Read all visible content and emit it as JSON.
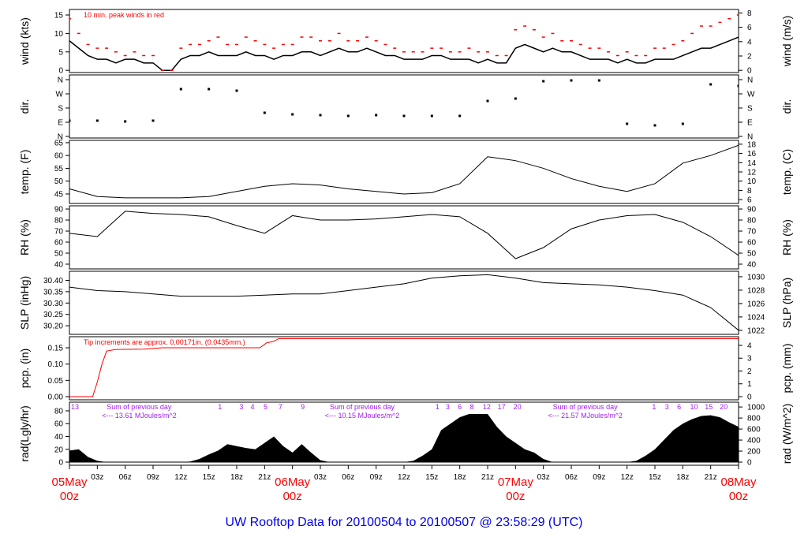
{
  "title": "UW Rooftop Data for 20100504  to  20100507 @ 23:58:29  (UTC)",
  "chart_data": {
    "type": "line",
    "x_unit": "hours since 05May 00z",
    "xlim": [
      0,
      72
    ],
    "x_ticks": [
      {
        "h": 0,
        "label": "05May",
        "sub": "00z",
        "date": true
      },
      {
        "h": 3,
        "label": "03z"
      },
      {
        "h": 6,
        "label": "06z"
      },
      {
        "h": 9,
        "label": "09z"
      },
      {
        "h": 12,
        "label": "12z"
      },
      {
        "h": 15,
        "label": "15z"
      },
      {
        "h": 18,
        "label": "18z"
      },
      {
        "h": 21,
        "label": "21z"
      },
      {
        "h": 24,
        "label": "06May",
        "sub": "00z",
        "date": true
      },
      {
        "h": 27,
        "label": "03z"
      },
      {
        "h": 30,
        "label": "06z"
      },
      {
        "h": 33,
        "label": "09z"
      },
      {
        "h": 36,
        "label": "12z"
      },
      {
        "h": 39,
        "label": "15z"
      },
      {
        "h": 42,
        "label": "18z"
      },
      {
        "h": 45,
        "label": "21z"
      },
      {
        "h": 48,
        "label": "07May",
        "sub": "00z",
        "date": true
      },
      {
        "h": 51,
        "label": "03z"
      },
      {
        "h": 54,
        "label": "06z"
      },
      {
        "h": 57,
        "label": "09z"
      },
      {
        "h": 60,
        "label": "12z"
      },
      {
        "h": 63,
        "label": "15z"
      },
      {
        "h": 66,
        "label": "18z"
      },
      {
        "h": 69,
        "label": "21z"
      },
      {
        "h": 72,
        "label": "08May",
        "sub": "00z",
        "date": true
      }
    ],
    "panels": [
      {
        "id": "wind",
        "ylabel": "wind (kts)",
        "ylabel_right": "wind (m/s)",
        "ylim": [
          -0.6,
          16.5
        ],
        "ticks": [
          0,
          5,
          10,
          15
        ],
        "tick_labels": [
          "0",
          "5",
          "10",
          "15"
        ],
        "right_ticks": [
          0,
          2,
          4,
          6,
          8
        ],
        "right_tick_labels": [
          "0",
          "2",
          "4",
          "6",
          "8"
        ],
        "note": "10 min. peak winds in red",
        "step_hours": 1,
        "values": [
          8,
          6,
          4,
          3,
          3,
          2,
          3,
          3,
          2,
          2,
          0,
          0,
          3,
          4,
          4,
          5,
          4,
          4,
          4,
          5,
          4,
          4,
          3,
          4,
          4,
          5,
          5,
          4,
          5,
          6,
          5,
          5,
          6,
          5,
          4,
          4,
          3,
          3,
          3,
          4,
          4,
          3,
          3,
          3,
          2,
          3,
          2,
          2,
          6,
          7,
          6,
          5,
          6,
          5,
          5,
          4,
          3,
          3,
          3,
          2,
          3,
          2,
          2,
          3,
          3,
          3,
          4,
          5,
          6,
          6,
          7,
          8,
          9
        ],
        "peaks": [
          14,
          10,
          7,
          6,
          6,
          5,
          4,
          5,
          4,
          4,
          0,
          0,
          6,
          7,
          7,
          8,
          9,
          7,
          7,
          9,
          8,
          7,
          6,
          7,
          7,
          9,
          9,
          8,
          8,
          10,
          8,
          8,
          9,
          8,
          7,
          6,
          5,
          5,
          5,
          6,
          6,
          5,
          5,
          6,
          5,
          5,
          4,
          4,
          11,
          12,
          11,
          9,
          10,
          8,
          8,
          7,
          6,
          6,
          5,
          4,
          5,
          4,
          4,
          6,
          6,
          7,
          8,
          10,
          12,
          12,
          13,
          14,
          15
        ]
      },
      {
        "id": "dir",
        "ylabel": "dir.",
        "ylabel_right": "dir.",
        "ylim": [
          -10,
          390
        ],
        "ticks": [
          0,
          90,
          180,
          270,
          360
        ],
        "tick_labels": [
          "N",
          "E",
          "S",
          "W",
          "N"
        ],
        "right_ticks": [
          0,
          90,
          180,
          270,
          360
        ],
        "right_tick_labels": [
          "N",
          "E",
          "S",
          "W",
          "N"
        ],
        "step_hours": 3,
        "values": [
          100,
          100,
          95,
          100,
          300,
          300,
          290,
          150,
          140,
          135,
          130,
          135,
          130,
          130,
          130,
          225,
          240,
          350,
          355,
          355,
          80,
          70,
          80,
          330,
          320
        ]
      },
      {
        "id": "temp",
        "ylabel": "temp. (F)",
        "ylabel_right": "temp. (C)",
        "ylim": [
          41.3,
          65.9
        ],
        "ticks": [
          45,
          50,
          55,
          60,
          65
        ],
        "tick_labels": [
          "45",
          "50",
          "55",
          "60",
          "65"
        ],
        "right_ticks": [
          6,
          8,
          10,
          12,
          14,
          16,
          18
        ],
        "right_tick_labels": [
          "6",
          "8",
          "10",
          "12",
          "14",
          "16",
          "18"
        ],
        "step_hours": 3,
        "values": [
          47,
          44,
          43.5,
          43.5,
          43.5,
          44,
          46,
          48,
          49,
          48.5,
          47,
          46,
          45,
          45.5,
          49,
          59.5,
          58,
          55,
          51,
          48,
          46,
          49,
          57,
          60,
          64
        ]
      },
      {
        "id": "rh",
        "ylabel": "RH (%)",
        "ylabel_right": "RH (%)",
        "ylim": [
          35.7,
          92.9
        ],
        "ticks": [
          40,
          50,
          60,
          70,
          80,
          90
        ],
        "tick_labels": [
          "40",
          "50",
          "60",
          "70",
          "80",
          "90"
        ],
        "right_ticks": [
          40,
          50,
          60,
          70,
          80,
          90
        ],
        "right_tick_labels": [
          "40",
          "50",
          "60",
          "70",
          "80",
          "90"
        ],
        "step_hours": 3,
        "values": [
          68,
          65,
          88,
          86,
          85,
          83,
          75,
          68,
          84,
          80,
          80,
          81,
          83,
          85,
          83,
          68,
          45,
          55,
          72,
          80,
          84,
          85,
          78,
          65,
          48
        ]
      },
      {
        "id": "slp",
        "ylabel": "SLP (inHg)",
        "ylabel_right": "SLP (hPa)",
        "ylim": [
          30.162,
          30.44
        ],
        "ticks": [
          30.2,
          30.25,
          30.3,
          30.35,
          30.4
        ],
        "tick_labels": [
          "30.20",
          "30.25",
          "30.30",
          "30.35",
          "30.40"
        ],
        "right_ticks": [
          1022,
          1024,
          1026,
          1028,
          1030
        ],
        "right_tick_labels": [
          "1022",
          "1024",
          "1026",
          "1028",
          "1030"
        ],
        "step_hours": 3,
        "values": [
          30.37,
          30.355,
          30.35,
          30.34,
          30.33,
          30.33,
          30.33,
          30.335,
          30.34,
          30.34,
          30.355,
          30.37,
          30.385,
          30.41,
          30.42,
          30.425,
          30.41,
          30.39,
          30.385,
          30.38,
          30.37,
          30.355,
          30.335,
          30.28,
          30.18
        ]
      },
      {
        "id": "pcp",
        "ylabel": "pcp. (in)",
        "ylabel_right": "pcp. (mm)",
        "ylim": [
          -0.0097,
          0.184
        ],
        "ticks": [
          0,
          0.05,
          0.1,
          0.15
        ],
        "tick_labels": [
          "0.00",
          "0.05",
          "0.10",
          "0.15"
        ],
        "right_ticks": [
          0,
          1,
          2,
          3,
          4
        ],
        "right_tick_labels": [
          "0",
          "1",
          "2",
          "3",
          "4"
        ],
        "note": "Tip increments are approx. 0.00171in. (0.0435mm.)",
        "points": [
          [
            0,
            0
          ],
          [
            2.5,
            0
          ],
          [
            3,
            0.045
          ],
          [
            3.5,
            0.1
          ],
          [
            4,
            0.14
          ],
          [
            5,
            0.145
          ],
          [
            8,
            0.146
          ],
          [
            10,
            0.15
          ],
          [
            20.5,
            0.15
          ],
          [
            21.2,
            0.165
          ],
          [
            22,
            0.17
          ],
          [
            22.5,
            0.178
          ],
          [
            72,
            0.178
          ]
        ]
      },
      {
        "id": "rad",
        "ylabel": "rad(Lgly/hr)",
        "ylabel_right": "rad (W/m^2)",
        "ylim": [
          -4.9,
          93.5
        ],
        "ticks": [
          0,
          20,
          40,
          60,
          80
        ],
        "tick_labels": [
          "0",
          "20",
          "40",
          "60",
          "80"
        ],
        "right_ticks": [
          0,
          200,
          400,
          600,
          800,
          1000
        ],
        "right_tick_labels": [
          "0",
          "200",
          "400",
          "600",
          "800",
          "1000"
        ],
        "step_hours": 1,
        "values": [
          18,
          20,
          8,
          2,
          0,
          0,
          0,
          0,
          0,
          0,
          0,
          0,
          0,
          1,
          5,
          12,
          18,
          28,
          25,
          22,
          20,
          30,
          40,
          25,
          15,
          28,
          15,
          3,
          0,
          0,
          0,
          0,
          0,
          0,
          0,
          0,
          0,
          2,
          10,
          20,
          50,
          60,
          70,
          75,
          75,
          75,
          55,
          40,
          30,
          20,
          15,
          5,
          0,
          0,
          0,
          0,
          0,
          0,
          0,
          0,
          0,
          2,
          10,
          20,
          35,
          50,
          60,
          67,
          72,
          73,
          70,
          62,
          55
        ],
        "hour_markers": [
          {
            "h": 0.6,
            "label": "13"
          },
          {
            "h": 16.2,
            "label": "1"
          },
          {
            "h": 18.5,
            "label": "3"
          },
          {
            "h": 19.7,
            "label": "4"
          },
          {
            "h": 21.1,
            "label": "5"
          },
          {
            "h": 22.7,
            "label": "7"
          },
          {
            "h": 25.1,
            "label": "9"
          },
          {
            "h": 39.6,
            "label": "1"
          },
          {
            "h": 40.7,
            "label": "3"
          },
          {
            "h": 42,
            "label": "6"
          },
          {
            "h": 43.3,
            "label": "8"
          },
          {
            "h": 44.9,
            "label": "12"
          },
          {
            "h": 46.5,
            "label": "17"
          },
          {
            "h": 48.2,
            "label": "20"
          },
          {
            "h": 62.9,
            "label": "1"
          },
          {
            "h": 64.3,
            "label": "3"
          },
          {
            "h": 65.6,
            "label": "6"
          },
          {
            "h": 67.2,
            "label": "10"
          },
          {
            "h": 68.8,
            "label": "15"
          },
          {
            "h": 70.4,
            "label": "20"
          }
        ],
        "daily_sums": [
          {
            "h": 7.5,
            "line1": "Sum of previous day",
            "line2": "<--- 13.61 MJoules/m^2"
          },
          {
            "h": 31.5,
            "line1": "Sum of previous day",
            "line2": "<--- 10.15 MJoules/m^2"
          },
          {
            "h": 55.5,
            "line1": "Sum of previous day",
            "line2": "<--- 21.57 MJoules/m^2"
          }
        ]
      }
    ]
  }
}
